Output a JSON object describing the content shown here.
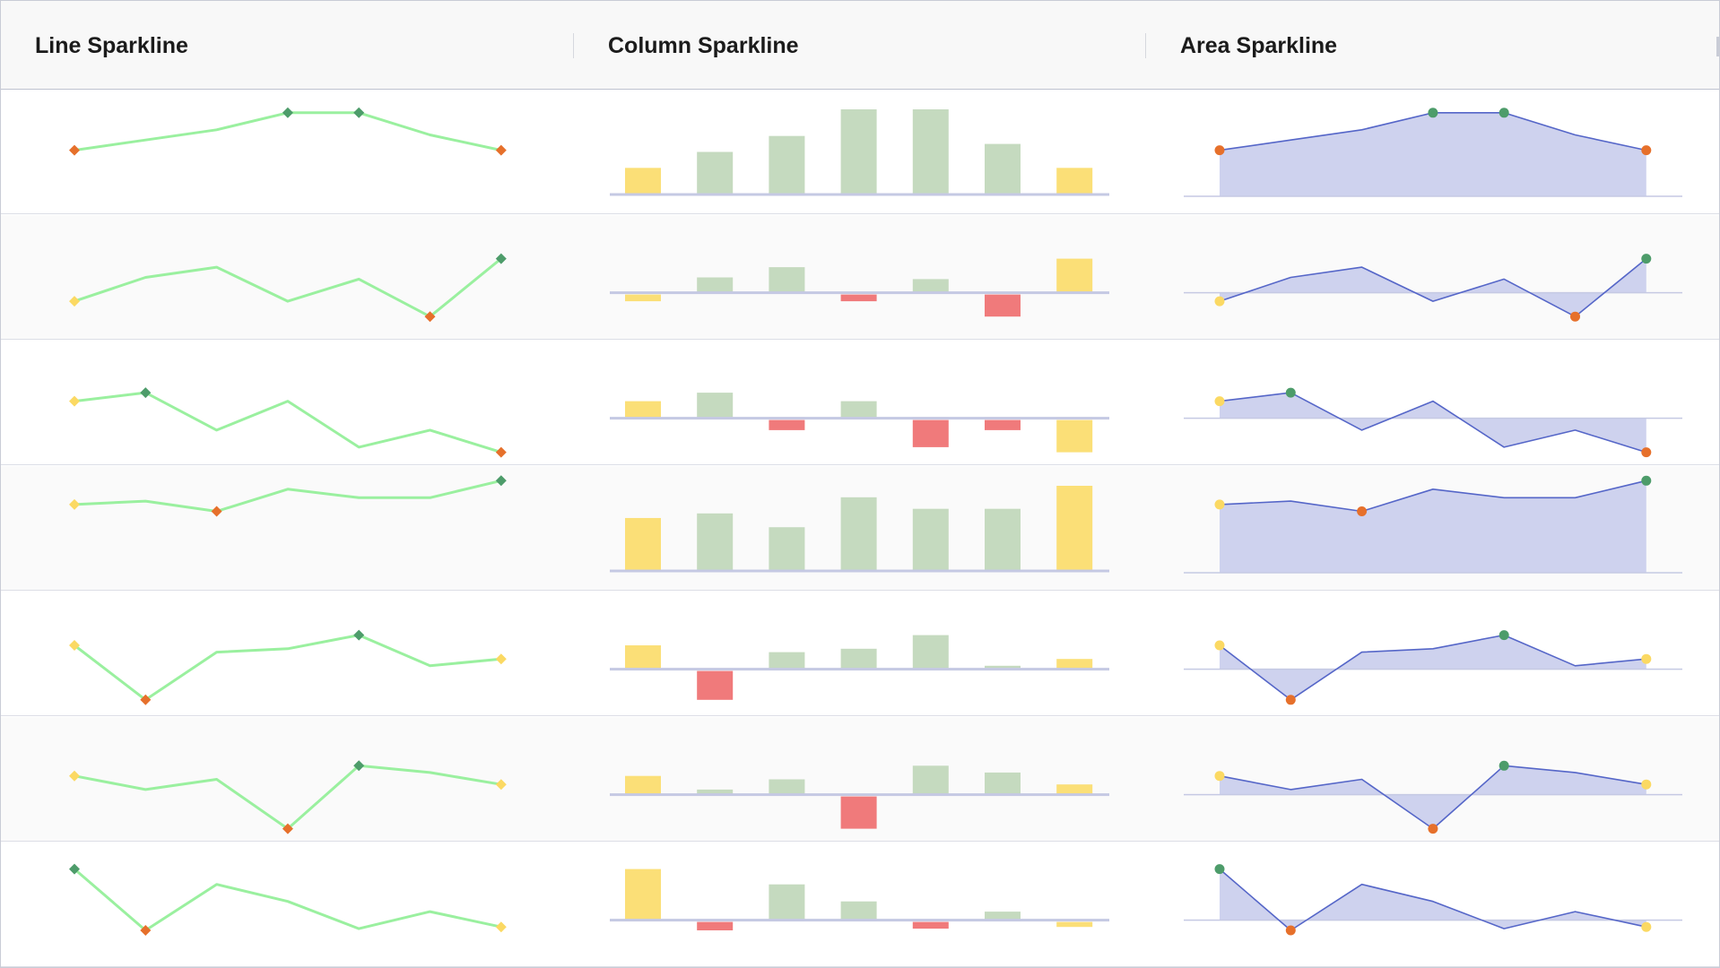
{
  "header": {
    "columns": [
      {
        "label": "Line Sparkline"
      },
      {
        "label": "Column Sparkline"
      },
      {
        "label": "Area Sparkline"
      }
    ]
  },
  "colors": {
    "line": "#9af09f",
    "area_fill": "#ced2ee",
    "area_line": "#5566c8",
    "axis": "#c5c9e3",
    "first": "#fbd963",
    "last": "#fbd963",
    "high": "#4d9c6a",
    "low": "#e6702b",
    "column_positive": "#c5dabf",
    "column_negative": "#f07a7b",
    "column_edge": "#fbdf77"
  },
  "chart_data": {
    "type": "line",
    "x": [
      1,
      2,
      3,
      4,
      5,
      6,
      7
    ],
    "ylim": [
      -1.6,
      3.4
    ],
    "rows": [
      {
        "values": [
          1.0,
          1.6,
          2.2,
          3.2,
          3.2,
          1.9,
          1.0
        ]
      },
      {
        "values": [
          -0.5,
          0.9,
          1.5,
          -0.5,
          0.8,
          -1.4,
          2.0
        ]
      },
      {
        "values": [
          1.0,
          1.5,
          -0.7,
          1.0,
          -1.7,
          -0.7,
          -2.0
        ]
      },
      {
        "values": [
          2.3,
          2.5,
          1.9,
          3.2,
          2.7,
          2.7,
          3.7
        ]
      },
      {
        "values": [
          1.4,
          -1.8,
          1.0,
          1.2,
          2.0,
          0.2,
          0.6
        ]
      },
      {
        "values": [
          1.1,
          0.3,
          0.9,
          -2.0,
          1.7,
          1.3,
          0.6
        ]
      },
      {
        "values": [
          3.0,
          -0.6,
          2.1,
          1.1,
          -0.5,
          0.5,
          -0.4
        ]
      }
    ]
  }
}
